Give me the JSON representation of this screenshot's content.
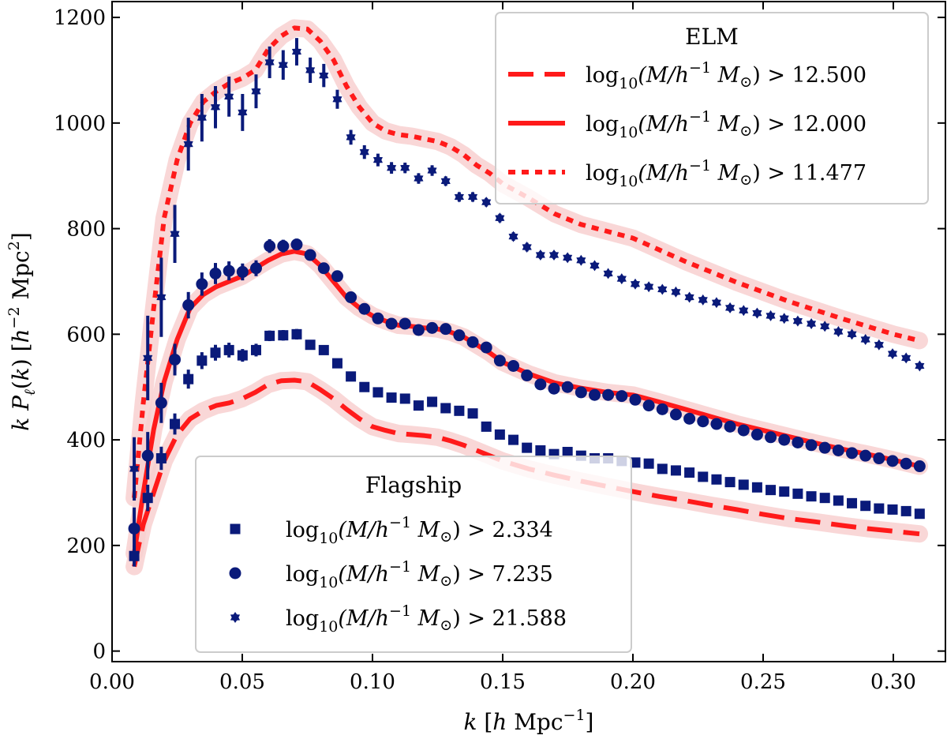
{
  "chart_data": {
    "type": "line+scatter",
    "xlabel": "k [h Mpc^-1]",
    "ylabel": "k P_ℓ(k) [h^-2 Mpc^2]",
    "xlim": [
      0.0,
      0.32
    ],
    "ylim": [
      -20,
      1230
    ],
    "xticks": [
      0.0,
      0.05,
      0.1,
      0.15,
      0.2,
      0.25,
      0.3
    ],
    "xtick_labels": [
      "0.00",
      "0.05",
      "0.10",
      "0.15",
      "0.20",
      "0.25",
      "0.30"
    ],
    "yticks": [
      0,
      200,
      400,
      600,
      800,
      1000,
      1200
    ],
    "ytick_labels": [
      "0",
      "200",
      "400",
      "600",
      "800",
      "1000",
      "1200"
    ],
    "grid": false,
    "legends": [
      {
        "title": "ELM",
        "placement": "top-right",
        "entries": [
          {
            "style": "dashed",
            "prefix": "log",
            "sub": "10",
            "mid": "(M/h",
            "sup": "−1",
            "tail": " M",
            "sym": "⊙",
            "end": ")",
            "threshold": "> 12.500"
          },
          {
            "style": "solid",
            "prefix": "log",
            "sub": "10",
            "mid": "(M/h",
            "sup": "−1",
            "tail": " M",
            "sym": "⊙",
            "end": ")",
            "threshold": "> 12.000"
          },
          {
            "style": "dotted",
            "prefix": "log",
            "sub": "10",
            "mid": "(M/h",
            "sup": "−1",
            "tail": " M",
            "sym": "⊙",
            "end": ")",
            "threshold": "> 11.477"
          }
        ]
      },
      {
        "title": "Flagship",
        "placement": "lower-left",
        "entries": [
          {
            "marker": "square",
            "prefix": "log",
            "sub": "10",
            "mid": "(M/h",
            "sup": "−1",
            "tail": " M",
            "sym": "⊙",
            "end": ")",
            "threshold": "> 2.334"
          },
          {
            "marker": "circle",
            "prefix": "log",
            "sub": "10",
            "mid": "(M/h",
            "sup": "−1",
            "tail": " M",
            "sym": "⊙",
            "end": ")",
            "threshold": "> 7.235"
          },
          {
            "marker": "star",
            "prefix": "log",
            "sub": "10",
            "mid": "(M/h",
            "sup": "−1",
            "tail": " M",
            "sym": "⊙",
            "end": ")",
            "threshold": "> 21.588"
          }
        ]
      }
    ],
    "colors": {
      "model": "#ff1a1a",
      "band": "#f8d0d0",
      "data": "#0a1a7a"
    },
    "elm_lines": [
      {
        "name": "ELM > 12.500",
        "style": "dashed",
        "x": [
          0.0085,
          0.012,
          0.016,
          0.02,
          0.025,
          0.03,
          0.035,
          0.04,
          0.045,
          0.05,
          0.055,
          0.06,
          0.065,
          0.07,
          0.075,
          0.08,
          0.085,
          0.09,
          0.095,
          0.1,
          0.105,
          0.11,
          0.115,
          0.12,
          0.125,
          0.13,
          0.135,
          0.14,
          0.145,
          0.15,
          0.16,
          0.17,
          0.18,
          0.19,
          0.2,
          0.21,
          0.22,
          0.23,
          0.24,
          0.25,
          0.26,
          0.27,
          0.28,
          0.29,
          0.3,
          0.31
        ],
        "y": [
          160,
          240,
          300,
          360,
          410,
          440,
          455,
          465,
          470,
          478,
          490,
          505,
          512,
          513,
          510,
          495,
          478,
          458,
          440,
          425,
          418,
          412,
          410,
          408,
          405,
          398,
          390,
          380,
          370,
          360,
          345,
          333,
          322,
          312,
          302,
          293,
          285,
          276,
          268,
          259,
          251,
          245,
          238,
          232,
          227,
          222
        ]
      },
      {
        "name": "ELM > 12.000",
        "style": "solid",
        "x": [
          0.0085,
          0.012,
          0.016,
          0.02,
          0.025,
          0.03,
          0.035,
          0.04,
          0.045,
          0.05,
          0.055,
          0.06,
          0.065,
          0.07,
          0.075,
          0.08,
          0.085,
          0.09,
          0.095,
          0.1,
          0.105,
          0.11,
          0.115,
          0.12,
          0.125,
          0.13,
          0.135,
          0.14,
          0.145,
          0.15,
          0.16,
          0.17,
          0.18,
          0.19,
          0.2,
          0.21,
          0.22,
          0.23,
          0.24,
          0.25,
          0.26,
          0.27,
          0.28,
          0.29,
          0.3,
          0.31
        ],
        "y": [
          185,
          300,
          420,
          510,
          590,
          650,
          675,
          690,
          700,
          710,
          725,
          740,
          752,
          757,
          752,
          730,
          700,
          670,
          650,
          635,
          625,
          617,
          615,
          612,
          610,
          604,
          595,
          580,
          565,
          547,
          525,
          508,
          498,
          490,
          485,
          472,
          458,
          444,
          430,
          418,
          406,
          394,
          383,
          373,
          362,
          350
        ]
      },
      {
        "name": "ELM > 11.477",
        "style": "dotted",
        "x": [
          0.0085,
          0.012,
          0.016,
          0.02,
          0.025,
          0.03,
          0.035,
          0.04,
          0.045,
          0.05,
          0.055,
          0.06,
          0.065,
          0.07,
          0.075,
          0.08,
          0.085,
          0.09,
          0.095,
          0.1,
          0.105,
          0.11,
          0.115,
          0.12,
          0.125,
          0.13,
          0.135,
          0.14,
          0.145,
          0.15,
          0.16,
          0.17,
          0.18,
          0.19,
          0.2,
          0.21,
          0.22,
          0.23,
          0.24,
          0.25,
          0.26,
          0.27,
          0.28,
          0.29,
          0.3,
          0.31
        ],
        "y": [
          290,
          470,
          650,
          820,
          930,
          1000,
          1040,
          1060,
          1075,
          1085,
          1100,
          1140,
          1165,
          1180,
          1178,
          1155,
          1120,
          1070,
          1030,
          1000,
          985,
          978,
          975,
          970,
          965,
          955,
          940,
          920,
          905,
          885,
          858,
          828,
          808,
          795,
          782,
          760,
          738,
          718,
          698,
          680,
          662,
          646,
          630,
          615,
          600,
          588
        ]
      }
    ],
    "flagship_points": [
      {
        "name": "Flagship > 2.334",
        "marker": "square",
        "x": [
          0.0085,
          0.0137,
          0.0189,
          0.0241,
          0.0293,
          0.0345,
          0.0397,
          0.0449,
          0.0501,
          0.0553,
          0.0605,
          0.0657,
          0.0709,
          0.0761,
          0.0813,
          0.0865,
          0.0917,
          0.0969,
          0.1021,
          0.1073,
          0.1125,
          0.1177,
          0.1229,
          0.1281,
          0.1333,
          0.1385,
          0.1437,
          0.1489,
          0.1541,
          0.1593,
          0.1645,
          0.1697,
          0.1749,
          0.1801,
          0.1853,
          0.1905,
          0.1957,
          0.2009,
          0.2061,
          0.2113,
          0.2165,
          0.2217,
          0.2269,
          0.2321,
          0.2373,
          0.2425,
          0.2477,
          0.2529,
          0.2581,
          0.2633,
          0.2685,
          0.2737,
          0.2789,
          0.2841,
          0.2893,
          0.2945,
          0.2997,
          0.3049,
          0.3101
        ],
        "y": [
          180,
          290,
          365,
          430,
          515,
          550,
          565,
          570,
          560,
          570,
          597,
          598,
          600,
          580,
          570,
          545,
          520,
          500,
          490,
          480,
          478,
          465,
          472,
          460,
          455,
          450,
          425,
          410,
          400,
          385,
          380,
          373,
          377,
          370,
          365,
          365,
          360,
          357,
          355,
          345,
          342,
          338,
          330,
          325,
          320,
          315,
          310,
          305,
          302,
          298,
          293,
          290,
          285,
          280,
          275,
          270,
          268,
          265,
          260
        ],
        "err": [
          20,
          25,
          22,
          20,
          18,
          16,
          15,
          14,
          12,
          12,
          10,
          10,
          10,
          9,
          9,
          8,
          7,
          7,
          7,
          6,
          6,
          6,
          6,
          5,
          5,
          5,
          5,
          5,
          5,
          5,
          4,
          4,
          4,
          4,
          4,
          4,
          4,
          4,
          4,
          4,
          4,
          4,
          4,
          4,
          4,
          4,
          4,
          3,
          3,
          3,
          3,
          3,
          3,
          3,
          3,
          3,
          3,
          3,
          3
        ]
      },
      {
        "name": "Flagship > 7.235",
        "marker": "circle",
        "x": [
          0.0085,
          0.0137,
          0.0189,
          0.0241,
          0.0293,
          0.0345,
          0.0397,
          0.0449,
          0.0501,
          0.0553,
          0.0605,
          0.0657,
          0.0709,
          0.0761,
          0.0813,
          0.0865,
          0.0917,
          0.0969,
          0.1021,
          0.1073,
          0.1125,
          0.1177,
          0.1229,
          0.1281,
          0.1333,
          0.1385,
          0.1437,
          0.1489,
          0.1541,
          0.1593,
          0.1645,
          0.1697,
          0.1749,
          0.1801,
          0.1853,
          0.1905,
          0.1957,
          0.2009,
          0.2061,
          0.2113,
          0.2165,
          0.2217,
          0.2269,
          0.2321,
          0.2373,
          0.2425,
          0.2477,
          0.2529,
          0.2581,
          0.2633,
          0.2685,
          0.2737,
          0.2789,
          0.2841,
          0.2893,
          0.2945,
          0.2997,
          0.3049,
          0.3101
        ],
        "y": [
          232,
          370,
          470,
          552,
          655,
          695,
          715,
          720,
          718,
          725,
          767,
          767,
          770,
          750,
          725,
          710,
          670,
          648,
          630,
          620,
          620,
          608,
          612,
          610,
          598,
          585,
          575,
          550,
          540,
          522,
          505,
          497,
          500,
          490,
          485,
          485,
          483,
          476,
          465,
          458,
          448,
          440,
          435,
          430,
          425,
          418,
          410,
          405,
          400,
          395,
          390,
          385,
          380,
          375,
          370,
          365,
          360,
          355,
          350
        ],
        "err": [
          40,
          45,
          38,
          30,
          25,
          22,
          20,
          18,
          16,
          15,
          13,
          12,
          11,
          10,
          10,
          9,
          8,
          8,
          7,
          7,
          7,
          7,
          6,
          6,
          6,
          6,
          6,
          5,
          5,
          5,
          5,
          5,
          5,
          5,
          5,
          4,
          4,
          4,
          4,
          4,
          4,
          4,
          4,
          4,
          4,
          4,
          4,
          4,
          4,
          4,
          3,
          3,
          3,
          3,
          3,
          3,
          3,
          3,
          3
        ]
      },
      {
        "name": "Flagship > 21.588",
        "marker": "star",
        "x": [
          0.0085,
          0.0137,
          0.0189,
          0.0241,
          0.0293,
          0.0345,
          0.0397,
          0.0449,
          0.0501,
          0.0553,
          0.0605,
          0.0657,
          0.0709,
          0.0761,
          0.0813,
          0.0865,
          0.0917,
          0.0969,
          0.1021,
          0.1073,
          0.1125,
          0.1177,
          0.1229,
          0.1281,
          0.1333,
          0.1385,
          0.1437,
          0.1489,
          0.1541,
          0.1593,
          0.1645,
          0.1697,
          0.1749,
          0.1801,
          0.1853,
          0.1905,
          0.1957,
          0.2009,
          0.2061,
          0.2113,
          0.2165,
          0.2217,
          0.2269,
          0.2321,
          0.2373,
          0.2425,
          0.2477,
          0.2529,
          0.2581,
          0.2633,
          0.2685,
          0.2737,
          0.2789,
          0.2841,
          0.2893,
          0.2945,
          0.2997,
          0.3049,
          0.3101
        ],
        "y": [
          345,
          555,
          670,
          790,
          960,
          1010,
          1030,
          1050,
          1020,
          1060,
          1115,
          1110,
          1135,
          1100,
          1090,
          1045,
          973,
          945,
          930,
          915,
          915,
          895,
          910,
          890,
          860,
          860,
          850,
          820,
          785,
          765,
          750,
          750,
          745,
          740,
          730,
          715,
          705,
          695,
          690,
          685,
          680,
          670,
          665,
          660,
          650,
          645,
          640,
          635,
          630,
          625,
          620,
          615,
          605,
          600,
          590,
          580,
          563,
          555,
          540
        ],
        "err": [
          60,
          80,
          75,
          55,
          50,
          45,
          40,
          38,
          35,
          32,
          30,
          28,
          26,
          24,
          22,
          18,
          14,
          13,
          12,
          11,
          10,
          10,
          10,
          9,
          9,
          9,
          8,
          8,
          8,
          8,
          7,
          7,
          7,
          6,
          6,
          6,
          6,
          6,
          6,
          5,
          5,
          5,
          5,
          5,
          5,
          5,
          5,
          5,
          5,
          4,
          4,
          4,
          4,
          4,
          4,
          4,
          4,
          4,
          4
        ]
      }
    ]
  }
}
